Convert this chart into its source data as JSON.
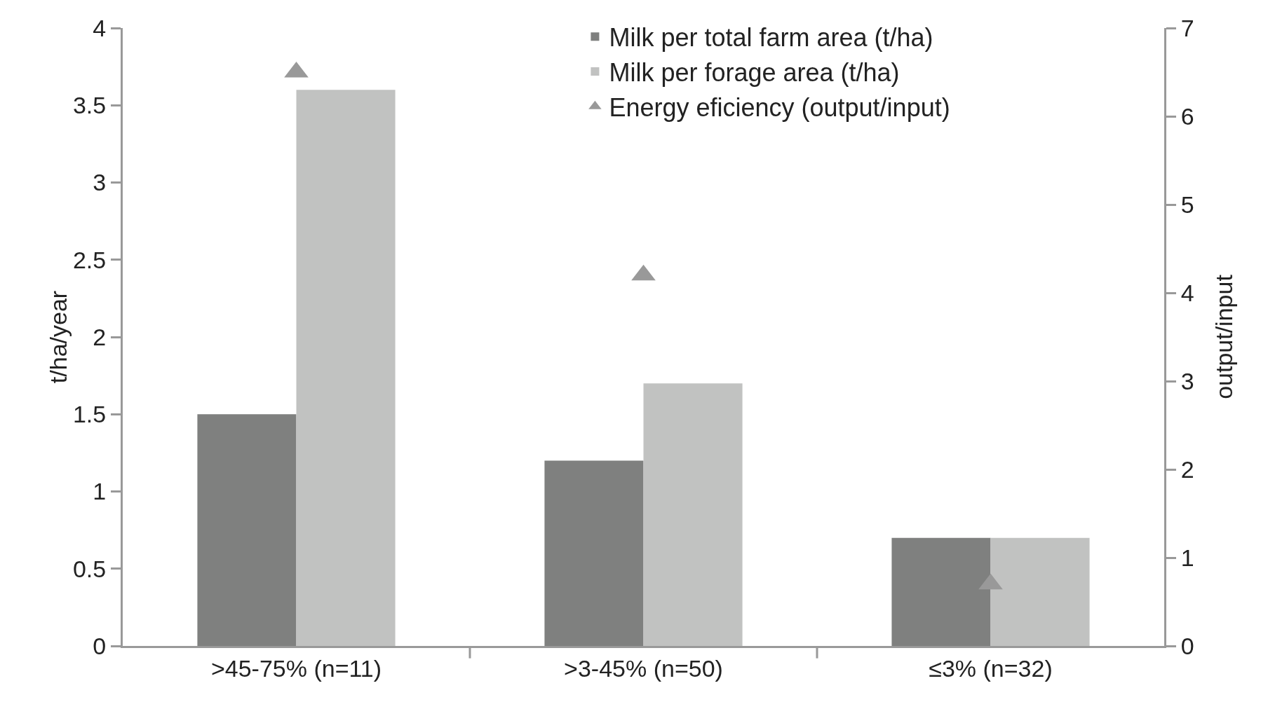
{
  "chart_data": {
    "type": "bar",
    "categories": [
      ">45-75% (n=11)",
      ">3-45% (n=50)",
      "≤3% (n=32)"
    ],
    "ylabel": "t/ha/year",
    "y2label": "output/input",
    "series": [
      {
        "name": "Milk per total farm area (t/ha)",
        "color": "#7f807f",
        "values": [
          1.5,
          1.2,
          0.7
        ]
      },
      {
        "name": "Milk per forage area (t/ha)",
        "color": "#c1c2c1",
        "values": [
          3.6,
          1.7,
          0.7
        ]
      },
      {
        "name": "Energy eficiency (output/input)",
        "type": "scatter",
        "axis": "y2",
        "marker": "triangle",
        "color": "#999999",
        "values": [
          6.5,
          4.2,
          0.7
        ]
      }
    ],
    "ylim": [
      0,
      4
    ],
    "yticks": [
      0,
      0.5,
      1,
      1.5,
      2,
      2.5,
      3,
      3.5,
      4
    ],
    "y2lim": [
      0,
      7
    ],
    "y2ticks": [
      0,
      1,
      2,
      3,
      4,
      5,
      6,
      7
    ],
    "grid": false,
    "legend": "top right"
  }
}
